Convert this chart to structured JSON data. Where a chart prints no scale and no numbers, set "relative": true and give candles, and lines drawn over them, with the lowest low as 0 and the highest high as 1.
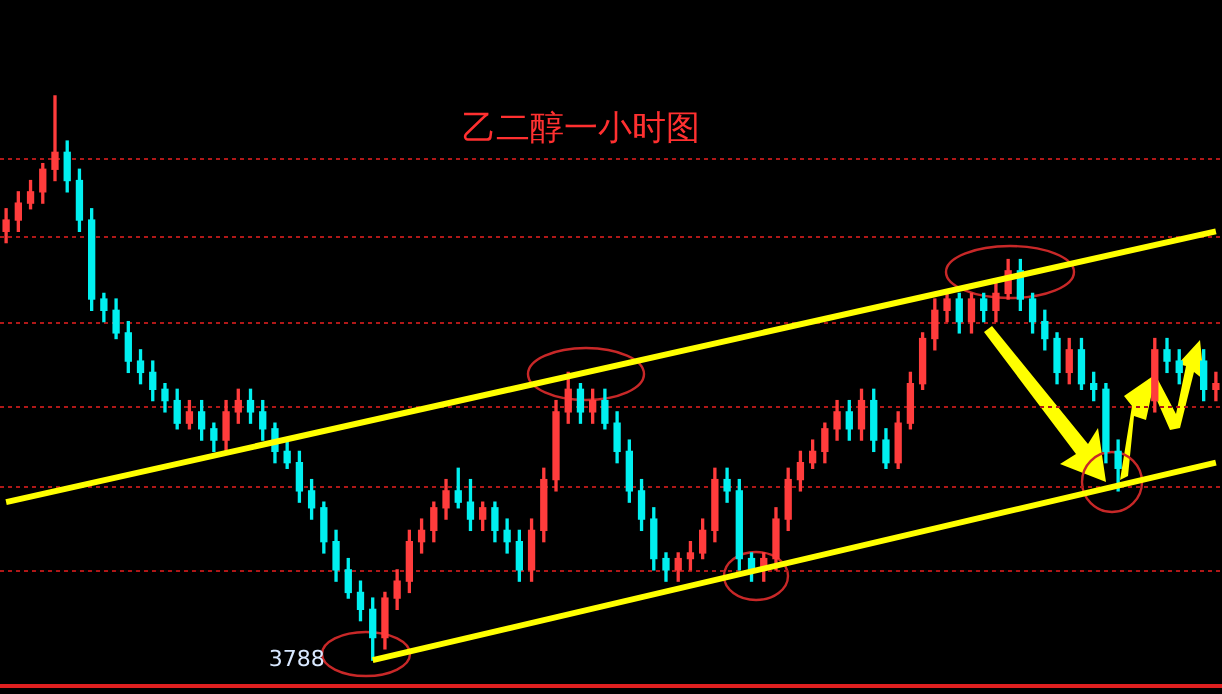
{
  "chart_data": {
    "type": "candlestick",
    "title": "乙二醇一小时图",
    "relative": true,
    "legend": false,
    "categories": [
      null,
      null,
      null,
      null,
      null,
      null,
      null,
      null,
      null,
      null,
      null,
      null,
      null,
      null,
      null,
      null,
      null,
      null,
      null,
      null,
      null,
      null,
      null,
      null,
      null,
      null,
      null,
      null,
      null,
      null,
      null,
      null,
      null,
      null,
      null,
      null,
      null,
      null,
      null,
      null,
      null,
      null,
      null,
      null,
      null,
      null,
      null,
      null,
      null,
      null,
      null,
      null,
      null,
      null,
      null,
      null,
      null,
      null,
      null,
      null,
      null,
      null,
      null,
      null,
      null,
      null,
      null,
      null,
      null,
      null,
      null,
      null,
      null,
      null,
      null,
      null,
      null,
      null,
      null,
      null,
      null,
      null,
      null,
      null,
      null,
      null,
      null,
      null,
      null,
      null,
      null,
      null,
      null,
      null,
      null,
      null,
      null,
      null,
      null,
      null
    ],
    "ohlc": [
      [
        0.76,
        0.8,
        0.74,
        0.78
      ],
      [
        0.78,
        0.83,
        0.76,
        0.81
      ],
      [
        0.81,
        0.85,
        0.8,
        0.83
      ],
      [
        0.83,
        0.88,
        0.81,
        0.87
      ],
      [
        0.87,
        1.0,
        0.85,
        0.9
      ],
      [
        0.9,
        0.92,
        0.83,
        0.85
      ],
      [
        0.85,
        0.87,
        0.76,
        0.78
      ],
      [
        0.78,
        0.8,
        0.62,
        0.64
      ],
      [
        0.64,
        0.65,
        0.6,
        0.62
      ],
      [
        0.62,
        0.64,
        0.57,
        0.58
      ],
      [
        0.58,
        0.6,
        0.51,
        0.53
      ],
      [
        0.53,
        0.55,
        0.49,
        0.51
      ],
      [
        0.51,
        0.53,
        0.46,
        0.48
      ],
      [
        0.48,
        0.49,
        0.44,
        0.46
      ],
      [
        0.46,
        0.48,
        0.41,
        0.42
      ],
      [
        0.42,
        0.46,
        0.41,
        0.44
      ],
      [
        0.44,
        0.46,
        0.39,
        0.41
      ],
      [
        0.41,
        0.42,
        0.37,
        0.39
      ],
      [
        0.39,
        0.46,
        0.37,
        0.44
      ],
      [
        0.44,
        0.48,
        0.42,
        0.46
      ],
      [
        0.46,
        0.48,
        0.42,
        0.44
      ],
      [
        0.44,
        0.46,
        0.39,
        0.41
      ],
      [
        0.41,
        0.42,
        0.35,
        0.37
      ],
      [
        0.37,
        0.39,
        0.34,
        0.35
      ],
      [
        0.35,
        0.37,
        0.28,
        0.3
      ],
      [
        0.3,
        0.32,
        0.25,
        0.27
      ],
      [
        0.27,
        0.28,
        0.19,
        0.21
      ],
      [
        0.21,
        0.23,
        0.14,
        0.16
      ],
      [
        0.16,
        0.18,
        0.11,
        0.12
      ],
      [
        0.12,
        0.14,
        0.07,
        0.09
      ],
      [
        0.09,
        0.11,
        0.0,
        0.04
      ],
      [
        0.04,
        0.12,
        0.02,
        0.11
      ],
      [
        0.11,
        0.16,
        0.09,
        0.14
      ],
      [
        0.14,
        0.23,
        0.12,
        0.21
      ],
      [
        0.21,
        0.25,
        0.19,
        0.23
      ],
      [
        0.23,
        0.28,
        0.21,
        0.27
      ],
      [
        0.27,
        0.32,
        0.25,
        0.3
      ],
      [
        0.3,
        0.34,
        0.27,
        0.28
      ],
      [
        0.28,
        0.32,
        0.23,
        0.25
      ],
      [
        0.25,
        0.28,
        0.23,
        0.27
      ],
      [
        0.27,
        0.28,
        0.21,
        0.23
      ],
      [
        0.23,
        0.25,
        0.19,
        0.21
      ],
      [
        0.21,
        0.23,
        0.14,
        0.16
      ],
      [
        0.16,
        0.25,
        0.14,
        0.23
      ],
      [
        0.23,
        0.34,
        0.21,
        0.32
      ],
      [
        0.32,
        0.46,
        0.3,
        0.44
      ],
      [
        0.44,
        0.51,
        0.42,
        0.48
      ],
      [
        0.48,
        0.49,
        0.42,
        0.44
      ],
      [
        0.44,
        0.48,
        0.42,
        0.46
      ],
      [
        0.46,
        0.48,
        0.41,
        0.42
      ],
      [
        0.42,
        0.44,
        0.35,
        0.37
      ],
      [
        0.37,
        0.39,
        0.28,
        0.3
      ],
      [
        0.3,
        0.32,
        0.23,
        0.25
      ],
      [
        0.25,
        0.27,
        0.16,
        0.18
      ],
      [
        0.18,
        0.19,
        0.14,
        0.16
      ],
      [
        0.16,
        0.19,
        0.14,
        0.18
      ],
      [
        0.18,
        0.21,
        0.16,
        0.19
      ],
      [
        0.19,
        0.25,
        0.18,
        0.23
      ],
      [
        0.23,
        0.34,
        0.21,
        0.32
      ],
      [
        0.32,
        0.34,
        0.28,
        0.3
      ],
      [
        0.3,
        0.32,
        0.16,
        0.18
      ],
      [
        0.18,
        0.19,
        0.14,
        0.16
      ],
      [
        0.16,
        0.19,
        0.14,
        0.18
      ],
      [
        0.18,
        0.27,
        0.16,
        0.25
      ],
      [
        0.25,
        0.34,
        0.23,
        0.32
      ],
      [
        0.32,
        0.37,
        0.3,
        0.35
      ],
      [
        0.35,
        0.39,
        0.34,
        0.37
      ],
      [
        0.37,
        0.42,
        0.35,
        0.41
      ],
      [
        0.41,
        0.46,
        0.39,
        0.44
      ],
      [
        0.44,
        0.46,
        0.39,
        0.41
      ],
      [
        0.41,
        0.48,
        0.39,
        0.46
      ],
      [
        0.46,
        0.48,
        0.37,
        0.39
      ],
      [
        0.39,
        0.41,
        0.34,
        0.35
      ],
      [
        0.35,
        0.44,
        0.34,
        0.42
      ],
      [
        0.42,
        0.51,
        0.41,
        0.49
      ],
      [
        0.49,
        0.58,
        0.48,
        0.57
      ],
      [
        0.57,
        0.64,
        0.55,
        0.62
      ],
      [
        0.62,
        0.65,
        0.6,
        0.64
      ],
      [
        0.64,
        0.65,
        0.58,
        0.6
      ],
      [
        0.6,
        0.65,
        0.58,
        0.64
      ],
      [
        0.64,
        0.65,
        0.6,
        0.62
      ],
      [
        0.62,
        0.67,
        0.6,
        0.65
      ],
      [
        0.65,
        0.71,
        0.64,
        0.69
      ],
      [
        0.69,
        0.71,
        0.62,
        0.64
      ],
      [
        0.64,
        0.65,
        0.58,
        0.6
      ],
      [
        0.6,
        0.62,
        0.55,
        0.57
      ],
      [
        0.57,
        0.58,
        0.49,
        0.51
      ],
      [
        0.51,
        0.57,
        0.49,
        0.55
      ],
      [
        0.55,
        0.57,
        0.48,
        0.49
      ],
      [
        0.49,
        0.51,
        0.46,
        0.48
      ],
      [
        0.48,
        0.49,
        0.35,
        0.37
      ],
      [
        0.37,
        0.39,
        0.3,
        0.34
      ],
      null,
      null,
      [
        0.46,
        0.57,
        0.44,
        0.55
      ],
      [
        0.55,
        0.57,
        0.51,
        0.53
      ],
      [
        0.53,
        0.55,
        0.49,
        0.51
      ],
      null,
      [
        0.53,
        0.55,
        0.46,
        0.48
      ],
      [
        0.48,
        0.51,
        0.46,
        0.49
      ]
    ],
    "series": [
      {
        "type": "line",
        "color": "#ffff00",
        "values": [
          0.28,
          null,
          null,
          null,
          null,
          null,
          null,
          null,
          null,
          null,
          null,
          null,
          null,
          null,
          null,
          null,
          null,
          null,
          null,
          null,
          null,
          null,
          null,
          null,
          null,
          null,
          null,
          null,
          null,
          null,
          null,
          null,
          null,
          null,
          null,
          null,
          null,
          null,
          null,
          null,
          null,
          null,
          null,
          null,
          null,
          null,
          null,
          null,
          null,
          null,
          null,
          null,
          null,
          null,
          null,
          null,
          null,
          null,
          null,
          null,
          null,
          null,
          null,
          null,
          null,
          null,
          null,
          null,
          null,
          null,
          null,
          null,
          null,
          null,
          null,
          null,
          null,
          null,
          null,
          null,
          null,
          null,
          null,
          null,
          null,
          null,
          null,
          null,
          null,
          null,
          null,
          null,
          null,
          null,
          null,
          null,
          null,
          null,
          null,
          0.76
        ]
      },
      {
        "type": "line",
        "color": "#ffff00",
        "values": [
          null,
          null,
          null,
          null,
          null,
          null,
          null,
          null,
          null,
          null,
          null,
          null,
          null,
          null,
          null,
          null,
          null,
          null,
          null,
          null,
          null,
          null,
          null,
          null,
          null,
          null,
          null,
          null,
          null,
          null,
          0.0,
          null,
          null,
          null,
          null,
          null,
          null,
          null,
          null,
          null,
          null,
          null,
          null,
          null,
          null,
          null,
          null,
          null,
          null,
          null,
          null,
          null,
          null,
          null,
          null,
          null,
          null,
          null,
          null,
          null,
          null,
          null,
          null,
          null,
          null,
          null,
          null,
          null,
          null,
          null,
          null,
          null,
          null,
          null,
          null,
          null,
          null,
          null,
          null,
          null,
          null,
          null,
          null,
          null,
          null,
          null,
          null,
          null,
          null,
          null,
          null,
          null,
          null,
          null,
          null,
          null,
          null,
          null,
          null,
          0.35
        ]
      }
    ],
    "ref_lines": [
      {
        "axis": "y",
        "value": 0.89,
        "color": "#b01818",
        "line_style": "dotted"
      },
      {
        "axis": "y",
        "value": 0.75,
        "color": "#b01818",
        "line_style": "dotted"
      },
      {
        "axis": "y",
        "value": 0.6,
        "color": "#b01818",
        "line_style": "dotted"
      },
      {
        "axis": "y",
        "value": 0.45,
        "color": "#b01818",
        "line_style": "dotted"
      },
      {
        "axis": "y",
        "value": 0.31,
        "color": "#b01818",
        "line_style": "dotted"
      },
      {
        "axis": "y",
        "value": 0.16,
        "color": "#b01818",
        "line_style": "dotted"
      }
    ],
    "annotations": [
      "3788"
    ]
  }
}
